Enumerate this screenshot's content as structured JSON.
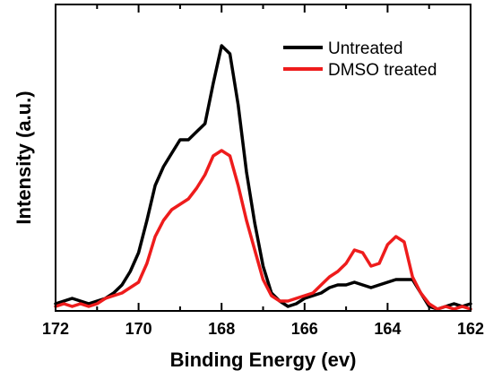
{
  "chart_data": {
    "type": "line",
    "title": "",
    "xlabel": "Binding Energy (ev)",
    "ylabel": "Intensity (a.u.)",
    "xlim": [
      172,
      162
    ],
    "xaxis_reversed": true,
    "xticks": [
      172,
      170,
      168,
      166,
      164,
      162
    ],
    "xtick_labels": [
      "172",
      "170",
      "168",
      "166",
      "164",
      "162"
    ],
    "ylim": [
      0,
      1
    ],
    "yticks_shown": false,
    "grid": false,
    "legend_position": "top-right",
    "series": [
      {
        "name": "Untreated",
        "color": "#000000",
        "x": [
          172.0,
          171.8,
          171.6,
          171.4,
          171.2,
          171.0,
          170.8,
          170.6,
          170.4,
          170.2,
          170.0,
          169.8,
          169.6,
          169.4,
          169.2,
          169.0,
          168.8,
          168.6,
          168.4,
          168.2,
          168.0,
          167.8,
          167.6,
          167.4,
          167.2,
          167.0,
          166.8,
          166.6,
          166.4,
          166.2,
          166.0,
          165.8,
          165.6,
          165.4,
          165.2,
          165.0,
          164.8,
          164.6,
          164.4,
          164.2,
          164.0,
          163.8,
          163.6,
          163.4,
          163.2,
          163.0,
          162.8,
          162.6,
          162.4,
          162.2,
          162.0
        ],
        "y": [
          0.02,
          0.03,
          0.04,
          0.03,
          0.02,
          0.03,
          0.04,
          0.06,
          0.09,
          0.14,
          0.21,
          0.33,
          0.46,
          0.53,
          0.58,
          0.63,
          0.63,
          0.66,
          0.69,
          0.84,
          0.98,
          0.95,
          0.76,
          0.51,
          0.32,
          0.16,
          0.06,
          0.03,
          0.01,
          0.02,
          0.04,
          0.05,
          0.06,
          0.08,
          0.09,
          0.09,
          0.1,
          0.09,
          0.08,
          0.09,
          0.1,
          0.11,
          0.11,
          0.11,
          0.06,
          0.01,
          0.0,
          0.01,
          0.02,
          0.01,
          0.02
        ]
      },
      {
        "name": "DMSO treated",
        "color": "#ee1c1c",
        "x": [
          172.0,
          171.8,
          171.6,
          171.4,
          171.2,
          171.0,
          170.8,
          170.6,
          170.4,
          170.2,
          170.0,
          169.8,
          169.6,
          169.4,
          169.2,
          169.0,
          168.8,
          168.6,
          168.4,
          168.2,
          168.0,
          167.8,
          167.6,
          167.4,
          167.2,
          167.0,
          166.8,
          166.6,
          166.4,
          166.2,
          166.0,
          165.8,
          165.6,
          165.4,
          165.2,
          165.0,
          164.8,
          164.6,
          164.4,
          164.2,
          164.0,
          163.8,
          163.6,
          163.4,
          163.2,
          163.0,
          162.8,
          162.6,
          162.4,
          162.2,
          162.0
        ],
        "y": [
          0.01,
          0.02,
          0.01,
          0.02,
          0.01,
          0.02,
          0.04,
          0.05,
          0.06,
          0.08,
          0.1,
          0.17,
          0.27,
          0.33,
          0.37,
          0.39,
          0.41,
          0.45,
          0.5,
          0.57,
          0.59,
          0.57,
          0.46,
          0.33,
          0.22,
          0.11,
          0.05,
          0.03,
          0.03,
          0.04,
          0.05,
          0.06,
          0.09,
          0.12,
          0.14,
          0.17,
          0.22,
          0.21,
          0.16,
          0.17,
          0.24,
          0.27,
          0.25,
          0.12,
          0.06,
          0.02,
          0.0,
          0.01,
          0.0,
          0.01,
          0.0
        ]
      }
    ]
  }
}
